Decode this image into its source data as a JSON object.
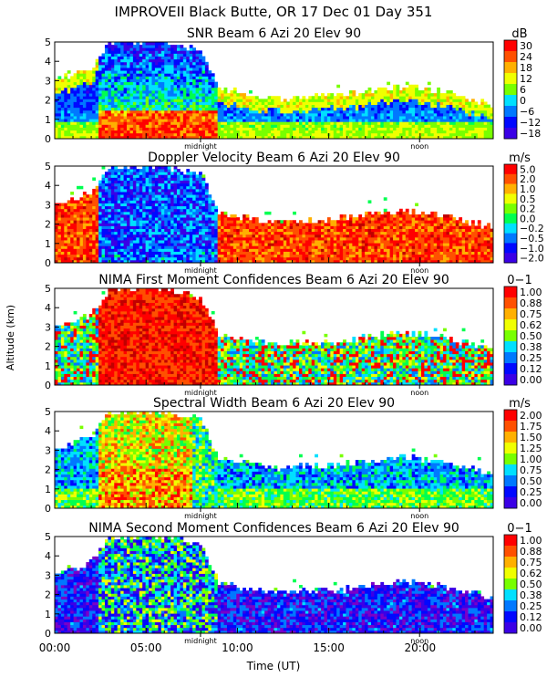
{
  "figure": {
    "title": "IMPROVEII  Black Butte, OR  17 Dec 01 Day 351",
    "ylabel": "Altitude (km)",
    "xlabel": "Time (UT)",
    "x_tick_labels": [
      "00:00",
      "05:00",
      "10:00",
      "15:00",
      "20:00"
    ],
    "y_tick_labels": [
      "0",
      "1",
      "2",
      "3",
      "4",
      "5"
    ],
    "midnight_label": "midnight",
    "noon_label": "noon",
    "midnight_hour": 7.98,
    "noon_hour": 19.97
  },
  "chart_data": [
    {
      "type": "heatmap",
      "title": "SNR Beam 6 Azi  20 Elev 90",
      "unit": "dB",
      "xlabel": "Time (UT)",
      "ylabel": "Altitude (km)",
      "xlim": [
        0,
        24
      ],
      "ylim": [
        0,
        5
      ],
      "colorbar_labels": [
        "30",
        "24",
        "18",
        "12",
        "6",
        "0",
        "−6",
        "−12",
        "−18"
      ],
      "colorbar_values": [
        30,
        24,
        18,
        12,
        6,
        0,
        -6,
        -12,
        -18
      ],
      "cloud_top_km": [
        [
          0,
          3.0
        ],
        [
          2,
          3.6
        ],
        [
          3,
          5.0
        ],
        [
          6,
          5.0
        ],
        [
          7,
          4.8
        ],
        [
          8,
          4.6
        ],
        [
          9,
          2.6
        ],
        [
          12,
          2.1
        ],
        [
          16,
          2.3
        ],
        [
          19,
          2.7
        ],
        [
          21,
          2.5
        ],
        [
          24,
          1.8
        ]
      ]
    },
    {
      "type": "heatmap",
      "title": "Doppler Velocity Beam 6 Azi  20 Elev 90",
      "unit": "m/s",
      "xlabel": "Time (UT)",
      "ylabel": "Altitude (km)",
      "xlim": [
        0,
        24
      ],
      "ylim": [
        0,
        5
      ],
      "colorbar_labels": [
        "5.0",
        "2.0",
        "1.0",
        "0.5",
        "0.2",
        "0.0",
        "−0.2",
        "−0.5",
        "−1.0",
        "−2.0"
      ],
      "colorbar_values": [
        5.0,
        2.0,
        1.0,
        0.5,
        0.2,
        0.0,
        -0.2,
        -0.5,
        -1.0,
        -2.0
      ],
      "cloud_top_km": [
        [
          0,
          3.0
        ],
        [
          2,
          3.6
        ],
        [
          3,
          5.0
        ],
        [
          6,
          5.0
        ],
        [
          7,
          4.8
        ],
        [
          8,
          4.6
        ],
        [
          9,
          2.6
        ],
        [
          12,
          2.1
        ],
        [
          16,
          2.3
        ],
        [
          19,
          2.7
        ],
        [
          21,
          2.5
        ],
        [
          24,
          1.8
        ]
      ]
    },
    {
      "type": "heatmap",
      "title": "NIMA First Moment Confidences Beam 6 Azi  20 Elev 90",
      "unit": "0−1",
      "xlabel": "Time (UT)",
      "ylabel": "Altitude (km)",
      "xlim": [
        0,
        24
      ],
      "ylim": [
        0,
        5
      ],
      "colorbar_labels": [
        "1.00",
        "0.88",
        "0.75",
        "0.62",
        "0.50",
        "0.38",
        "0.25",
        "0.12",
        "0.00"
      ],
      "colorbar_values": [
        1.0,
        0.88,
        0.75,
        0.62,
        0.5,
        0.38,
        0.25,
        0.12,
        0.0
      ],
      "cloud_top_km": [
        [
          0,
          3.0
        ],
        [
          2,
          3.6
        ],
        [
          3,
          5.0
        ],
        [
          6,
          5.0
        ],
        [
          7,
          4.8
        ],
        [
          8,
          4.6
        ],
        [
          9,
          2.6
        ],
        [
          12,
          2.1
        ],
        [
          16,
          2.3
        ],
        [
          19,
          2.7
        ],
        [
          21,
          2.5
        ],
        [
          24,
          1.8
        ]
      ]
    },
    {
      "type": "heatmap",
      "title": "Spectral Width Beam 6 Azi  20 Elev 90",
      "unit": "m/s",
      "xlabel": "Time (UT)",
      "ylabel": "Altitude (km)",
      "xlim": [
        0,
        24
      ],
      "ylim": [
        0,
        5
      ],
      "colorbar_labels": [
        "2.00",
        "1.75",
        "1.50",
        "1.25",
        "1.00",
        "0.75",
        "0.50",
        "0.25",
        "0.00"
      ],
      "colorbar_values": [
        2.0,
        1.75,
        1.5,
        1.25,
        1.0,
        0.75,
        0.5,
        0.25,
        0.0
      ],
      "cloud_top_km": [
        [
          0,
          3.0
        ],
        [
          2,
          3.6
        ],
        [
          3,
          5.0
        ],
        [
          6,
          5.0
        ],
        [
          7,
          4.8
        ],
        [
          8,
          4.6
        ],
        [
          9,
          2.6
        ],
        [
          12,
          2.1
        ],
        [
          16,
          2.3
        ],
        [
          19,
          2.7
        ],
        [
          21,
          2.5
        ],
        [
          24,
          1.8
        ]
      ]
    },
    {
      "type": "heatmap",
      "title": "NIMA Second Moment Confidences Beam 6 Azi  20 Elev 90",
      "unit": "0−1",
      "xlabel": "Time (UT)",
      "ylabel": "Altitude (km)",
      "xlim": [
        0,
        24
      ],
      "ylim": [
        0,
        5
      ],
      "colorbar_labels": [
        "1.00",
        "0.88",
        "0.75",
        "0.62",
        "0.50",
        "0.38",
        "0.25",
        "0.12",
        "0.00"
      ],
      "colorbar_values": [
        1.0,
        0.88,
        0.75,
        0.62,
        0.5,
        0.38,
        0.25,
        0.12,
        0.0
      ],
      "cloud_top_km": [
        [
          0,
          3.0
        ],
        [
          2,
          3.6
        ],
        [
          3,
          5.0
        ],
        [
          6,
          5.0
        ],
        [
          7,
          4.8
        ],
        [
          8,
          4.6
        ],
        [
          9,
          2.6
        ],
        [
          12,
          2.1
        ],
        [
          16,
          2.3
        ],
        [
          19,
          2.7
        ],
        [
          21,
          2.5
        ],
        [
          24,
          1.8
        ]
      ]
    }
  ]
}
